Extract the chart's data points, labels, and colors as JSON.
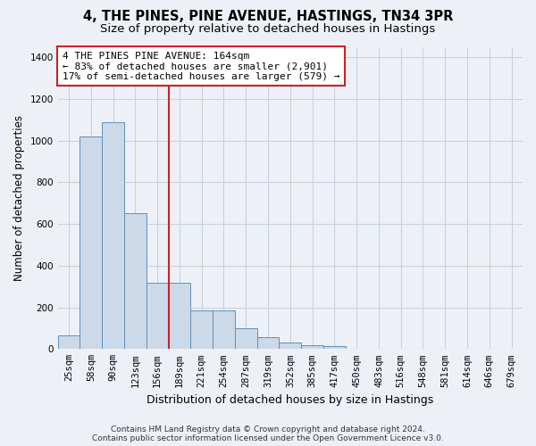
{
  "title": "4, THE PINES, PINE AVENUE, HASTINGS, TN34 3PR",
  "subtitle": "Size of property relative to detached houses in Hastings",
  "xlabel": "Distribution of detached houses by size in Hastings",
  "ylabel": "Number of detached properties",
  "categories": [
    "25sqm",
    "58sqm",
    "90sqm",
    "123sqm",
    "156sqm",
    "189sqm",
    "221sqm",
    "254sqm",
    "287sqm",
    "319sqm",
    "352sqm",
    "385sqm",
    "417sqm",
    "450sqm",
    "483sqm",
    "516sqm",
    "548sqm",
    "581sqm",
    "614sqm",
    "646sqm",
    "679sqm"
  ],
  "values": [
    65,
    1020,
    1090,
    650,
    320,
    320,
    185,
    185,
    100,
    55,
    30,
    20,
    15,
    0,
    0,
    0,
    0,
    0,
    0,
    0,
    0
  ],
  "bar_color": "#ccd9e8",
  "bar_edge_color": "#6090b8",
  "vline_color": "#cc2222",
  "vline_x_index": 4.5,
  "annotation_text": "4 THE PINES PINE AVENUE: 164sqm\n← 83% of detached houses are smaller (2,901)\n17% of semi-detached houses are larger (579) →",
  "annotation_box_color": "#cc2222",
  "ylim": [
    0,
    1450
  ],
  "yticks": [
    0,
    200,
    400,
    600,
    800,
    1000,
    1200,
    1400
  ],
  "grid_color": "#c8d2dc",
  "bg_color": "#edf1f7",
  "title_fontsize": 10.5,
  "subtitle_fontsize": 9.5,
  "annotation_fontsize": 8,
  "ylabel_fontsize": 8.5,
  "xlabel_fontsize": 9,
  "tick_fontsize": 7.5,
  "footer_fontsize": 6.5,
  "footer_text": "Contains HM Land Registry data © Crown copyright and database right 2024.\nContains public sector information licensed under the Open Government Licence v3.0."
}
